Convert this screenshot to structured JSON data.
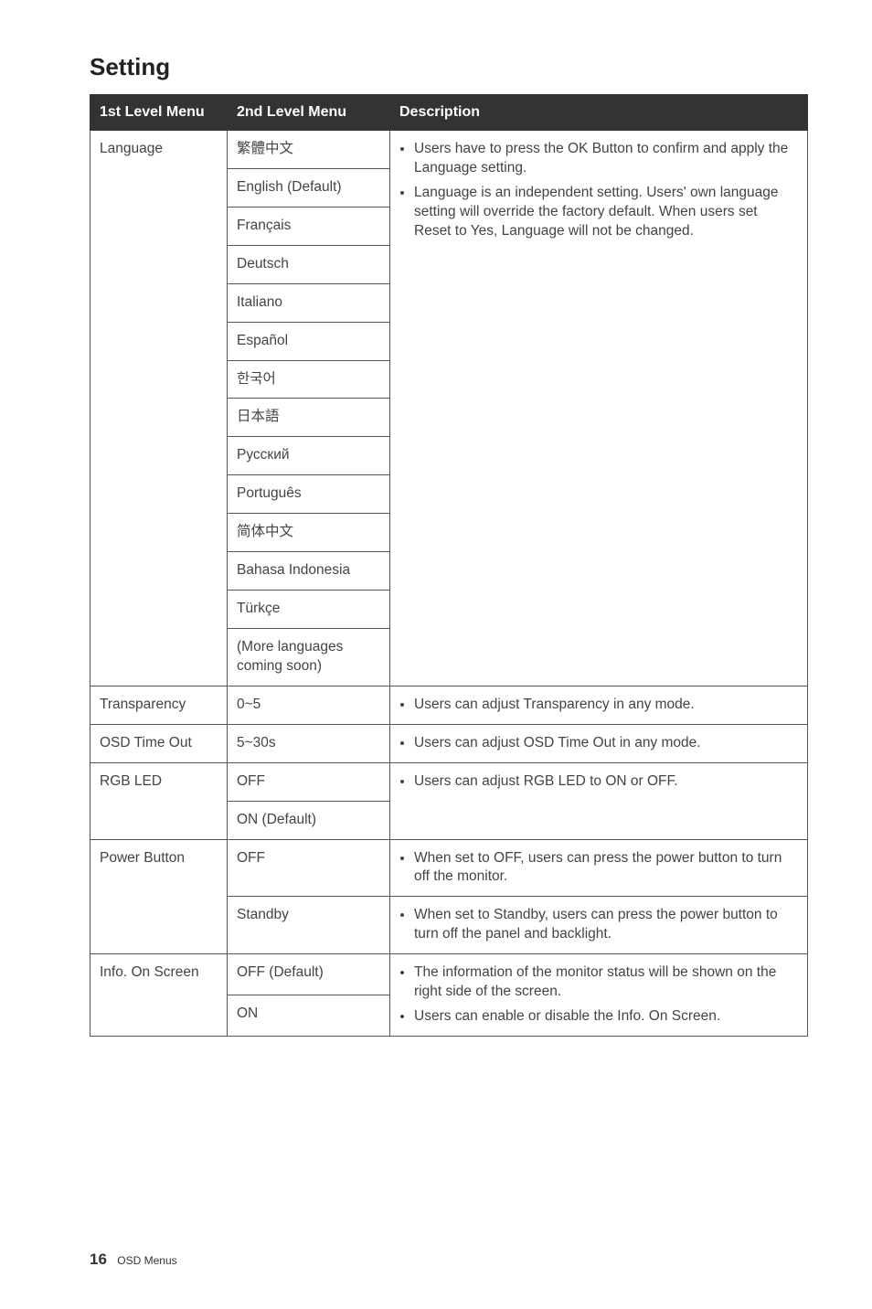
{
  "title": "Setting",
  "headers": [
    "1st Level Menu",
    "2nd Level Menu",
    "Description"
  ],
  "language": {
    "label": "Language",
    "options": [
      "繁體中文",
      "English (Default)",
      "Français",
      "Deutsch",
      "Italiano",
      "Español",
      "한국어",
      "日本語",
      "Русский",
      "Português",
      "简体中文",
      "Bahasa Indonesia",
      "Türkçe",
      "(More languages coming soon)"
    ],
    "desc": [
      "Users have to press the OK Button to confirm and apply the Language setting.",
      "Language is an independent setting. Users' own language setting will override the factory default. When users set Reset to Yes, Language will not be changed."
    ]
  },
  "transparency": {
    "label": "Transparency",
    "value": "0~5",
    "desc": [
      "Users can adjust Transparency in any mode."
    ]
  },
  "osd_timeout": {
    "label": "OSD Time Out",
    "value": "5~30s",
    "desc": [
      "Users can adjust OSD Time Out in any mode."
    ]
  },
  "rgb_led": {
    "label": "RGB LED",
    "options": [
      "OFF",
      "ON (Default)"
    ],
    "desc": [
      "Users can adjust RGB LED to ON or OFF."
    ]
  },
  "power_button": {
    "label": "Power Button",
    "options": [
      "OFF",
      "Standby"
    ],
    "desc_off": [
      "When set to OFF, users can press the power button to turn off the monitor."
    ],
    "desc_standby": [
      "When set to Standby, users can press the power button to turn off the panel and backlight."
    ]
  },
  "info_on_screen": {
    "label": "Info. On Screen",
    "options": [
      "OFF (Default)",
      "ON"
    ],
    "desc": [
      "The information of the monitor status will be shown on the right side of the screen.",
      "Users can enable or disable the Info. On Screen."
    ]
  },
  "footer": {
    "page": "16",
    "section": "OSD Menus"
  }
}
